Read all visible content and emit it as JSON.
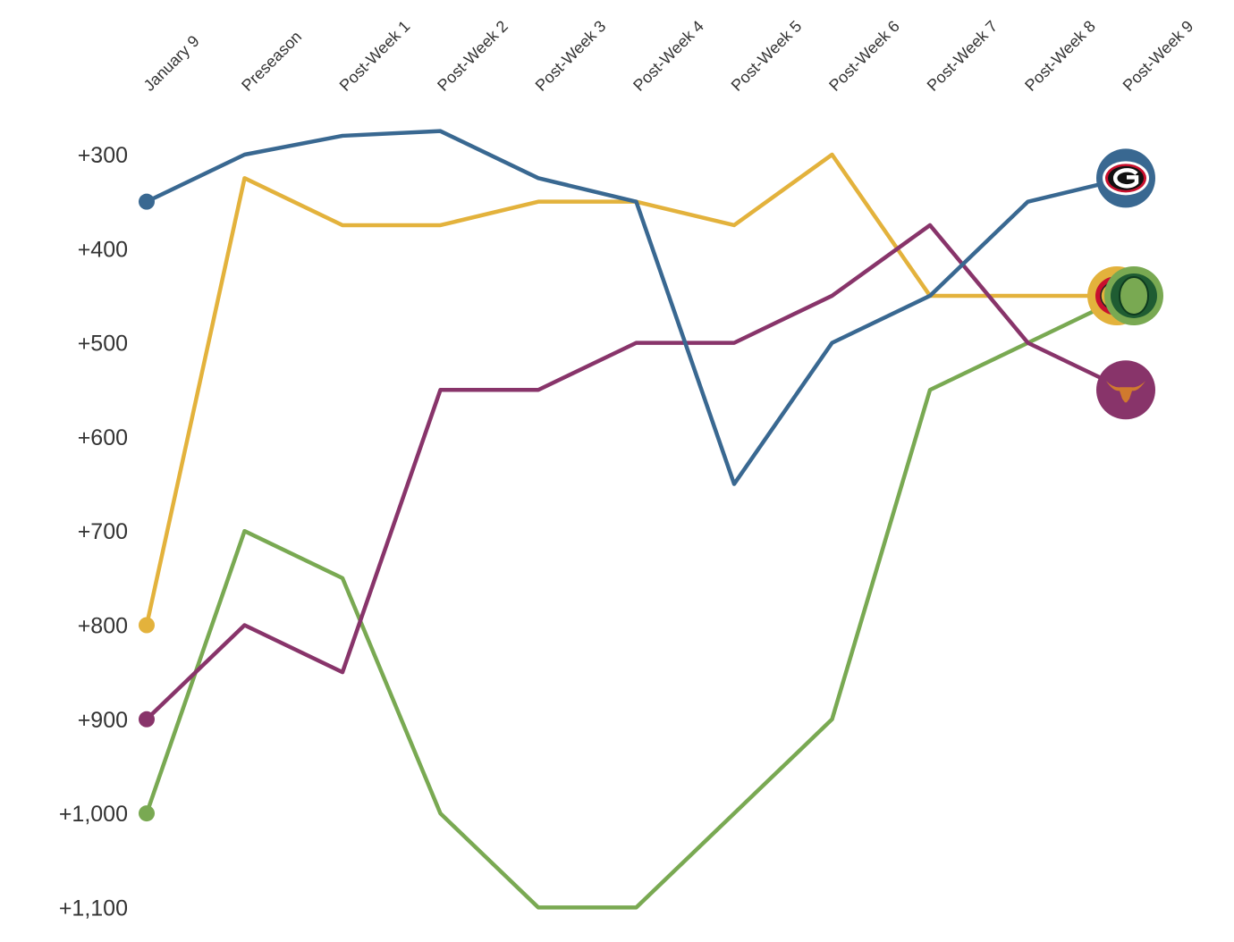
{
  "chart_data": {
    "type": "line",
    "categories": [
      "January 9",
      "Preseason",
      "Post-Week 1",
      "Post-Week 2",
      "Post-Week 3",
      "Post-Week 4",
      "Post-Week 5",
      "Post-Week 6",
      "Post-Week 7",
      "Post-Week 8",
      "Post-Week 9"
    ],
    "y_tick_values": [
      300,
      400,
      500,
      600,
      700,
      800,
      900,
      1000,
      1100
    ],
    "y_tick_labels": [
      "+300",
      "+400",
      "+500",
      "+600",
      "+700",
      "+800",
      "+900",
      "+1,000",
      "+1,100"
    ],
    "ylim": [
      250,
      1100
    ],
    "y_reversed": true,
    "grid": false,
    "series": [
      {
        "key": "georgia",
        "color": "#396891",
        "logo": "georgia-g-logo",
        "values": [
          350,
          300,
          280,
          275,
          325,
          350,
          650,
          500,
          450,
          350,
          325
        ]
      },
      {
        "key": "ohio-state",
        "color": "#e3b23c",
        "logo": "ohio-state-logo",
        "values": [
          800,
          325,
          375,
          375,
          350,
          350,
          375,
          300,
          450,
          450,
          450
        ]
      },
      {
        "key": "oregon",
        "color": "#79a952",
        "logo": "oregon-o-logo",
        "values": [
          1000,
          700,
          750,
          1000,
          1100,
          1100,
          1000,
          900,
          550,
          500,
          450
        ]
      },
      {
        "key": "texas",
        "color": "#88346a",
        "logo": "texas-longhorn-logo",
        "values": [
          900,
          800,
          850,
          550,
          550,
          500,
          500,
          450,
          375,
          500,
          550
        ]
      }
    ]
  }
}
